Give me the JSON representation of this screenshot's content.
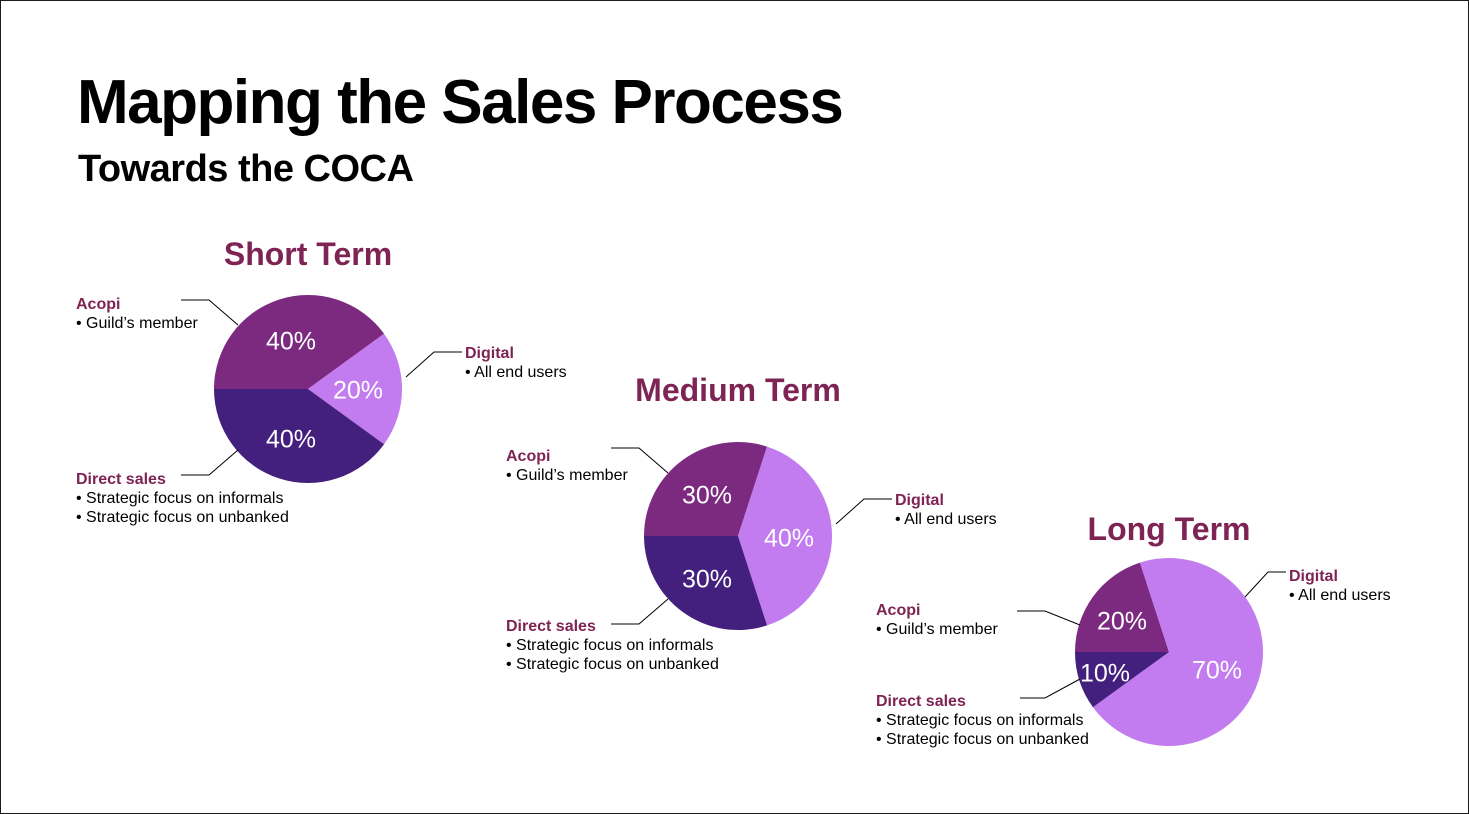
{
  "slide": {
    "title": "Mapping the Sales Process",
    "subtitle": "Towards the COCA"
  },
  "colors": {
    "heading": "#7e2454",
    "acopi": "#7b2a7f",
    "digital": "#c27cef",
    "direct_sales": "#43207d",
    "leader_line": "#000000"
  },
  "chart_data": [
    {
      "type": "pie",
      "title": "Short Term",
      "slices": [
        {
          "key": "acopi",
          "label": "Acopi",
          "value": 40,
          "display": "40%",
          "bullets": [
            "Guild’s member"
          ]
        },
        {
          "key": "digital",
          "label": "Digital",
          "value": 20,
          "display": "20%",
          "bullets": [
            "All end users"
          ]
        },
        {
          "key": "direct_sales",
          "label": "Direct sales",
          "value": 40,
          "display": "40%",
          "bullets": [
            "Strategic focus on informals",
            "Strategic focus on unbanked"
          ]
        }
      ]
    },
    {
      "type": "pie",
      "title": "Medium Term",
      "slices": [
        {
          "key": "acopi",
          "label": "Acopi",
          "value": 30,
          "display": "30%",
          "bullets": [
            "Guild’s member"
          ]
        },
        {
          "key": "digital",
          "label": "Digital",
          "value": 40,
          "display": "40%",
          "bullets": [
            "All end users"
          ]
        },
        {
          "key": "direct_sales",
          "label": "Direct sales",
          "value": 30,
          "display": "30%",
          "bullets": [
            "Strategic focus on informals",
            "Strategic focus on unbanked"
          ]
        }
      ]
    },
    {
      "type": "pie",
      "title": "Long Term",
      "slices": [
        {
          "key": "acopi",
          "label": "Acopi",
          "value": 20,
          "display": "20%",
          "bullets": [
            "Guild’s member"
          ]
        },
        {
          "key": "digital",
          "label": "Digital",
          "value": 70,
          "display": "70%",
          "bullets": [
            "All end users"
          ]
        },
        {
          "key": "direct_sales",
          "label": "Direct sales",
          "value": 10,
          "display": "10%",
          "bullets": [
            "Strategic focus on informals",
            "Strategic focus on unbanked"
          ]
        }
      ]
    }
  ]
}
